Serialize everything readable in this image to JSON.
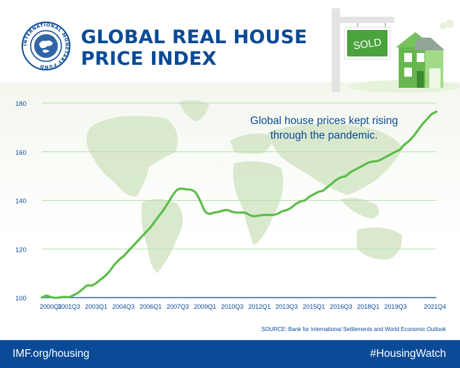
{
  "header": {
    "title_line1": "GLOBAL REAL HOUSE",
    "title_line2": "PRICE INDEX",
    "seal_text": "INTERNATIONAL MONETARY FUND",
    "sign_text": "SOLD"
  },
  "callout": {
    "line1": "Global house prices kept rising",
    "line2": "through the pandemic."
  },
  "source": "SOURCE: Bank for International Settlements and World Economic Outlook",
  "footer": {
    "left": "IMF.org/housing",
    "right": "#HousingWatch"
  },
  "colors": {
    "brand_blue": "#0a4a96",
    "line_green": "#5cbd4a",
    "grid": "#b7dca9",
    "map": "#d6e7c9",
    "axis": "#0a4a96"
  },
  "chart_data": {
    "type": "line",
    "title": "GLOBAL REAL HOUSE PRICE INDEX",
    "xlabel": "",
    "ylabel": "",
    "ylim": [
      100,
      180
    ],
    "yticks": [
      100,
      120,
      140,
      160,
      180
    ],
    "grid": true,
    "xticks": [
      "2000Q1",
      "2001Q3",
      "2003Q1",
      "2004Q3",
      "2006Q1",
      "2007Q3",
      "2009Q1",
      "2010Q3",
      "2012Q1",
      "2013Q3",
      "2015Q1",
      "2016Q3",
      "2018Q1",
      "2019Q3",
      "2021Q4"
    ],
    "series": [
      {
        "name": "",
        "x": [
          "2000Q1",
          "2000Q2",
          "2000Q3",
          "2000Q4",
          "2001Q1",
          "2001Q2",
          "2001Q3",
          "2001Q4",
          "2002Q1",
          "2002Q2",
          "2002Q3",
          "2002Q4",
          "2003Q1",
          "2003Q2",
          "2003Q3",
          "2003Q4",
          "2004Q1",
          "2004Q2",
          "2004Q3",
          "2004Q4",
          "2005Q1",
          "2005Q2",
          "2005Q3",
          "2005Q4",
          "2006Q1",
          "2006Q2",
          "2006Q3",
          "2006Q4",
          "2007Q1",
          "2007Q2",
          "2007Q3",
          "2007Q4",
          "2008Q1",
          "2008Q2",
          "2008Q3",
          "2008Q4",
          "2009Q1",
          "2009Q2",
          "2009Q3",
          "2009Q4",
          "2010Q1",
          "2010Q2",
          "2010Q3",
          "2010Q4",
          "2011Q1",
          "2011Q2",
          "2011Q3",
          "2011Q4",
          "2012Q1",
          "2012Q2",
          "2012Q3",
          "2012Q4",
          "2013Q1",
          "2013Q2",
          "2013Q3",
          "2013Q4",
          "2014Q1",
          "2014Q2",
          "2014Q3",
          "2014Q4",
          "2015Q1",
          "2015Q2",
          "2015Q3",
          "2015Q4",
          "2016Q1",
          "2016Q2",
          "2016Q3",
          "2016Q4",
          "2017Q1",
          "2017Q2",
          "2017Q3",
          "2017Q4",
          "2018Q1",
          "2018Q2",
          "2018Q3",
          "2018Q4",
          "2019Q1",
          "2019Q2",
          "2019Q3",
          "2019Q4",
          "2020Q1",
          "2020Q2",
          "2020Q3",
          "2020Q4",
          "2021Q1",
          "2021Q2",
          "2021Q3",
          "2021Q4"
        ],
        "values": [
          100.0,
          100.8,
          100.2,
          99.9,
          100.1,
          100.3,
          100.2,
          101.0,
          102.0,
          103.5,
          105.0,
          105.0,
          106.0,
          107.5,
          109.0,
          111.0,
          113.5,
          115.5,
          117.0,
          119.0,
          121.0,
          123.0,
          125.0,
          127.0,
          129.0,
          131.5,
          134.0,
          136.5,
          139.5,
          142.5,
          144.5,
          144.8,
          144.5,
          144.3,
          143.0,
          139.5,
          135.5,
          134.5,
          135.0,
          135.3,
          135.8,
          136.0,
          135.3,
          135.0,
          135.0,
          134.8,
          133.8,
          133.5,
          133.8,
          134.0,
          134.0,
          134.0,
          134.5,
          135.5,
          136.0,
          137.0,
          138.5,
          139.5,
          140.0,
          141.5,
          142.5,
          143.5,
          144.0,
          145.5,
          147.0,
          148.5,
          149.5,
          150.0,
          151.5,
          152.5,
          153.5,
          154.5,
          155.5,
          156.0,
          156.2,
          157.0,
          158.0,
          159.0,
          160.0,
          161.0,
          163.0,
          164.5,
          166.5,
          169.0,
          171.5,
          173.5,
          175.5,
          176.5
        ]
      }
    ]
  }
}
